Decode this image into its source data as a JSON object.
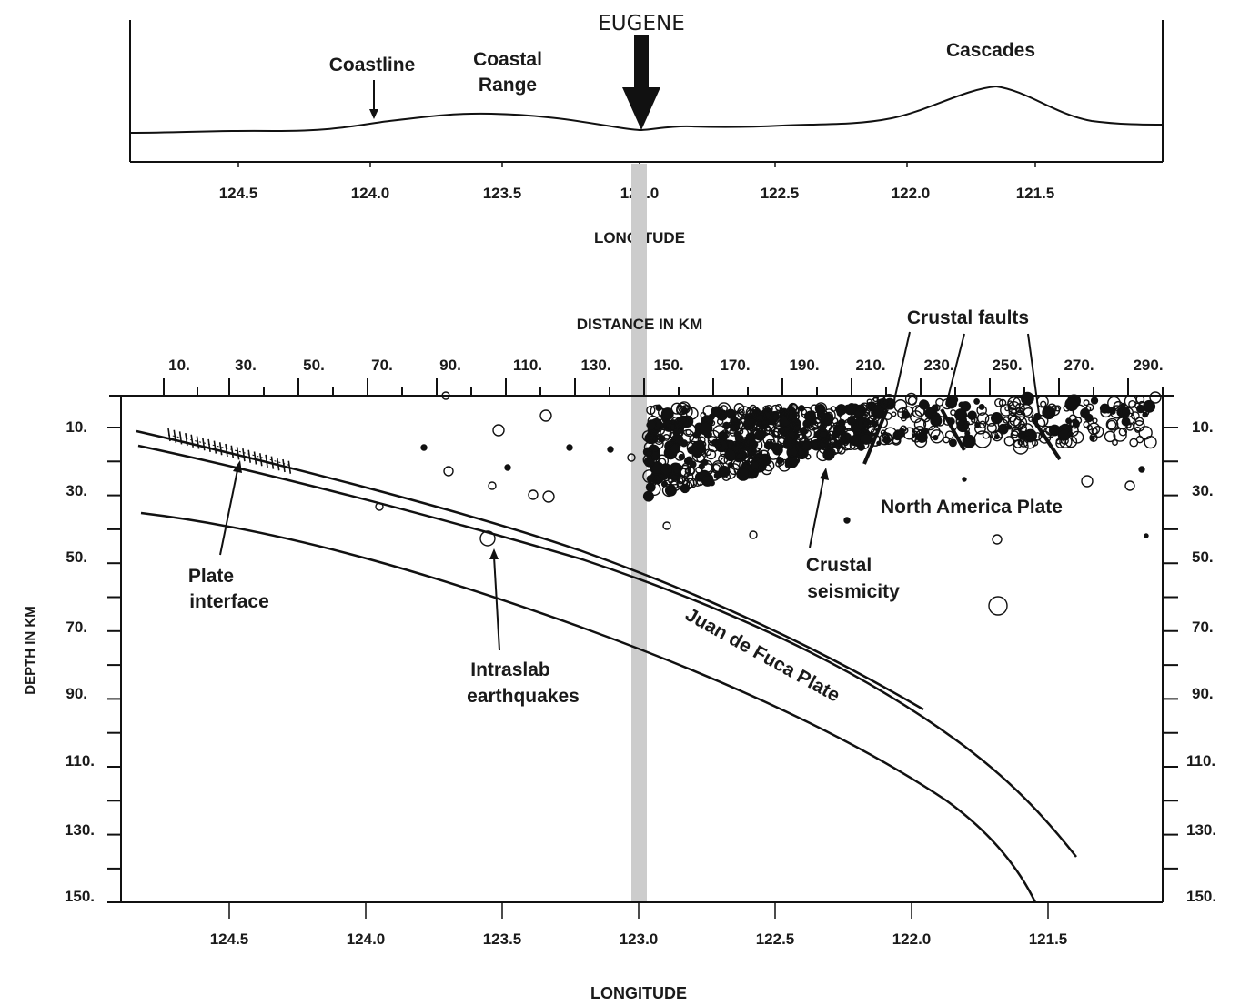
{
  "top_panel": {
    "city_label": "EUGENE",
    "features": [
      "Coastline",
      "Coastal",
      "Range",
      "Cascades"
    ],
    "longitude_ticks": [
      "124.5",
      "124.0",
      "123.5",
      "123.0",
      "122.5",
      "122.0",
      "121.5"
    ],
    "axis_title": "LONGITUDE"
  },
  "middle_title": "DISTANCE IN KM",
  "cross_section": {
    "distance_ticks": [
      "10.",
      "30.",
      "50.",
      "70.",
      "90.",
      "110.",
      "130.",
      "150.",
      "170.",
      "190.",
      "210.",
      "230.",
      "250.",
      "270.",
      "290."
    ],
    "depth_ticks": [
      "10.",
      "30.",
      "50.",
      "70.",
      "90.",
      "110.",
      "130.",
      "150."
    ],
    "depth_axis_title": "DEPTH IN KM",
    "longitude_ticks": [
      "124.5",
      "124.0",
      "123.5",
      "123.0",
      "122.5",
      "122.0",
      "121.5"
    ],
    "axis_title": "LONGITUDE",
    "annotations": {
      "plate_interface": [
        "Plate",
        "interface"
      ],
      "intraslab": [
        "Intraslab",
        "earthquakes"
      ],
      "crustal_seismicity": [
        "Crustal",
        "seismicity"
      ],
      "crustal_faults": "Crustal faults",
      "north_america": "North America Plate",
      "juan_de_fuca": "Juan de Fuca Plate"
    }
  },
  "colors": {
    "line": "#111111",
    "marker": "#cccccc",
    "marker_label": "#333333"
  }
}
